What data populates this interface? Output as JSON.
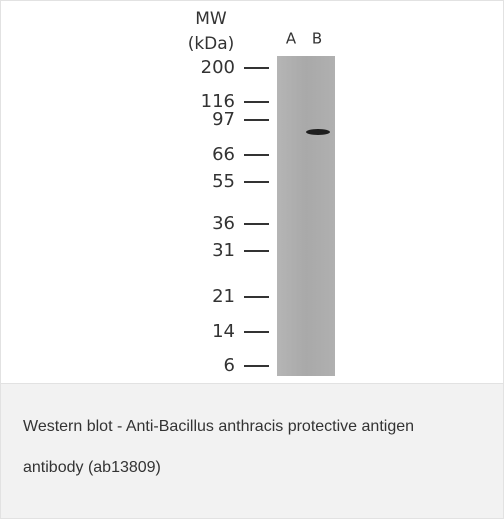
{
  "figure": {
    "mw_label": "MW",
    "unit_label": "(kDa)",
    "lanes": [
      "A",
      "B"
    ],
    "markers": [
      "200",
      "116",
      "97",
      "66",
      "55",
      "36",
      "31",
      "21",
      "14",
      "6"
    ]
  },
  "caption": "Western blot - Anti-Bacillus anthracis protective antigen antibody (ab13809)"
}
